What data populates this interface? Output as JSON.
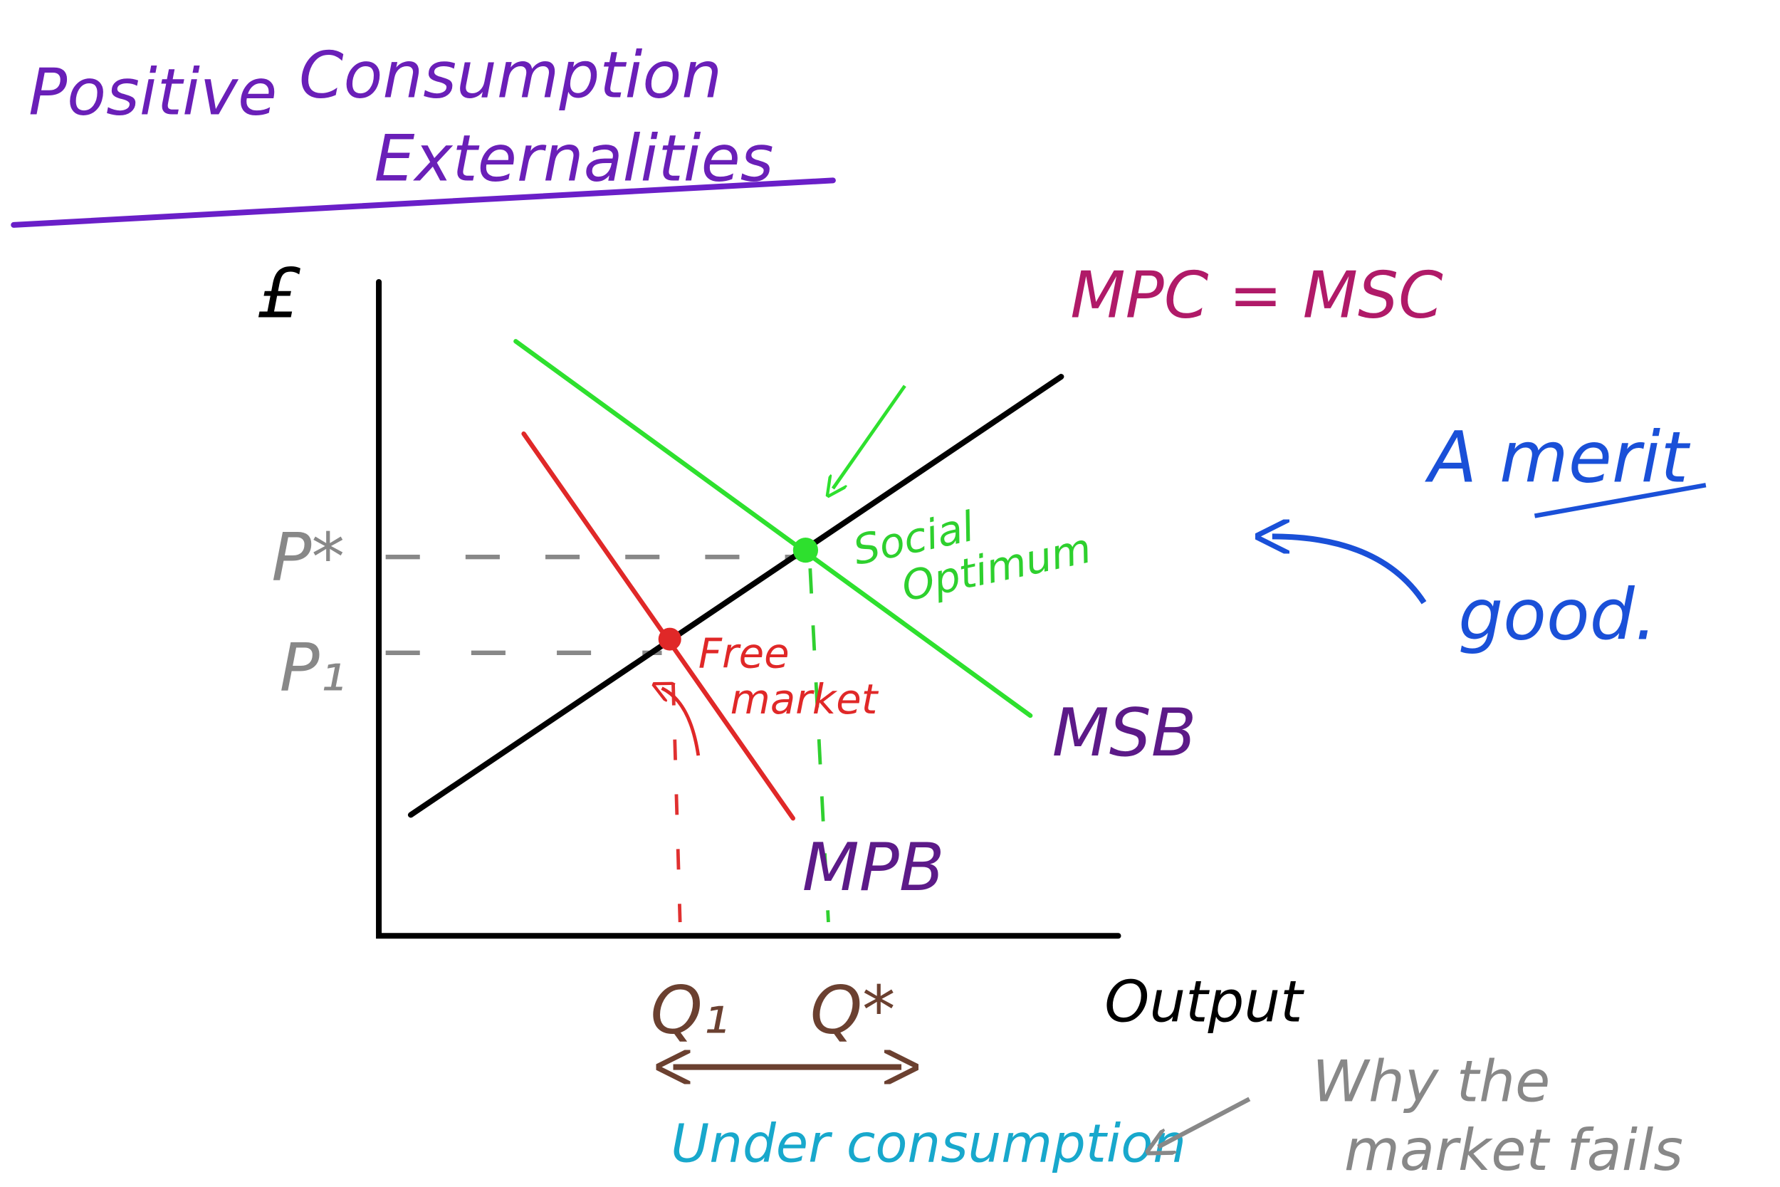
{
  "title": {
    "words": [
      "Positive",
      "Consumption",
      "Externalities"
    ]
  },
  "axes": {
    "y_label": "£",
    "x_label": "Output"
  },
  "prices": {
    "optimum": "P*",
    "market": "P₁"
  },
  "quantities": {
    "market": "Q₁",
    "optimum": "Q*"
  },
  "curves": {
    "supply": "MPC = MSC",
    "social_benefit": "MSB",
    "private_benefit": "MPB"
  },
  "points": {
    "optimum": [
      "Social",
      "Optimum"
    ],
    "market": [
      "Free",
      "market"
    ]
  },
  "notes": {
    "merit": [
      "A merit",
      "good."
    ],
    "under": "Under consumption",
    "why": [
      "Why the",
      "market fails"
    ]
  }
}
